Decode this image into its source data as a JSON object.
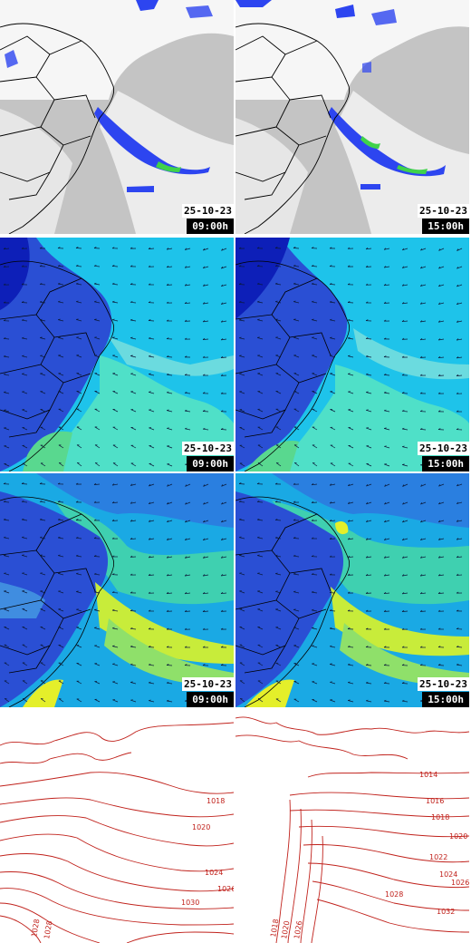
{
  "rows": [
    {
      "layer": "satellite-precipitation",
      "panels": [
        {
          "date": "25-10-23",
          "time": "09:00h"
        },
        {
          "date": "25-10-23",
          "time": "15:00h"
        }
      ]
    },
    {
      "layer": "wind-low-level",
      "panels": [
        {
          "date": "25-10-23",
          "time": "09:00h"
        },
        {
          "date": "25-10-23",
          "time": "15:00h"
        }
      ]
    },
    {
      "layer": "wind-upper-level",
      "panels": [
        {
          "date": "25-10-23",
          "time": "09:00h"
        },
        {
          "date": "25-10-23",
          "time": "15:00h"
        }
      ]
    },
    {
      "layer": "pressure-isobars",
      "panels": [
        {
          "labels": [
            "1018",
            "1020",
            "1024",
            "1026",
            "1030",
            "1028",
            "1028"
          ]
        },
        {
          "labels": [
            "1014",
            "1016",
            "1018",
            "1020",
            "1022",
            "1024",
            "1026",
            "1028",
            "1032",
            "1018",
            "1020",
            "1026"
          ]
        }
      ]
    }
  ],
  "colors": {
    "cloud_gray": "#bdbdbd",
    "rain_blue": "#1f3df0",
    "rain_green": "#3fd24a",
    "ocean_cyan": "#19c7e8",
    "land_blue": "#2b4fd8",
    "jet_green": "#8ee05a",
    "jet_yellow": "#e8f232",
    "isobar_red": "#c0211b",
    "border_black": "#000000"
  }
}
